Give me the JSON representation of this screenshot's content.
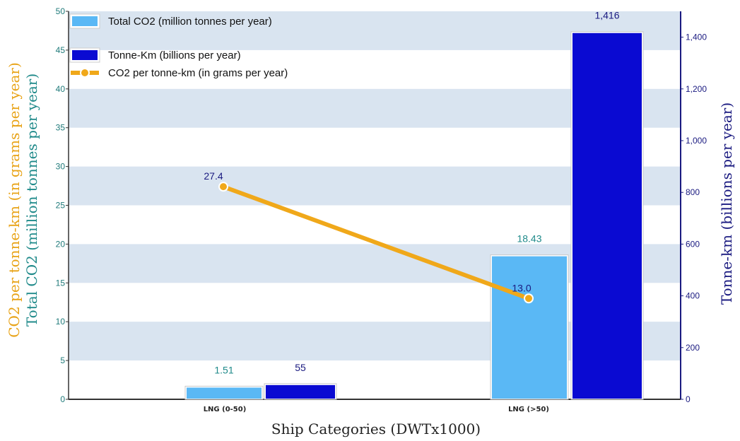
{
  "chart_data": {
    "type": "bar",
    "title": "",
    "xlabel": "Ship Categories  (DWTx1000)",
    "ylabel_left_1": "CO2 per tonne-km (in grams per year)",
    "ylabel_left_2": "Total CO2 (million tonnes per year)",
    "ylabel_right": "Tonne-km (billions per year)",
    "categories": [
      "LNG (0-50)",
      "LNG (>50)"
    ],
    "ylim_left": [
      0,
      50
    ],
    "left_ticks": [
      "0",
      "5",
      "10",
      "15",
      "20",
      "25",
      "30",
      "35",
      "40",
      "45",
      "50"
    ],
    "ylim_right": [
      0,
      1500
    ],
    "right_ticks": [
      "0",
      "200",
      "400",
      "600",
      "800",
      "1,000",
      "1,200",
      "1,400"
    ],
    "grid": "alternating horizontal bands",
    "legend_position": "top-left",
    "series": [
      {
        "name": "Total CO2 (million tonnes per year)",
        "type": "bar",
        "axis": "left",
        "color": "#5ab8f5",
        "values": [
          1.51,
          18.43
        ],
        "labels": [
          "1.51",
          "18.43"
        ]
      },
      {
        "name": "Tonne-Km (billions per year)",
        "type": "bar",
        "axis": "right",
        "color": "#0a0ad2",
        "values": [
          55,
          1416
        ],
        "labels": [
          "55",
          "1,416"
        ]
      },
      {
        "name": "CO2 per tonne-km (in grams per year)",
        "type": "line",
        "axis": "left",
        "color": "#f0a81a",
        "values": [
          27.4,
          13.0
        ],
        "labels": [
          "27.4",
          "13.0"
        ]
      }
    ]
  }
}
